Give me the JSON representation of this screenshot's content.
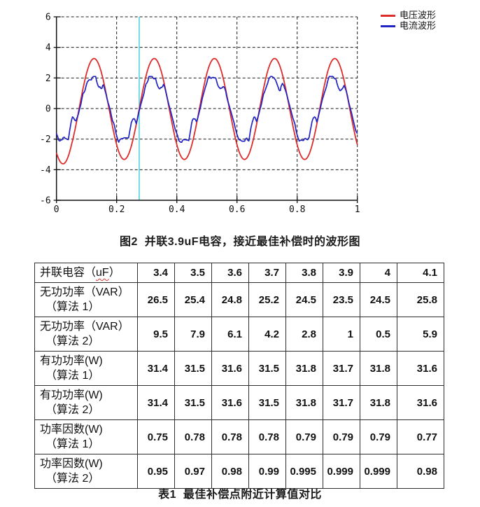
{
  "figure_caption": "图2  并联3.9uF电容，接近最佳补偿时的波形图",
  "table_caption": "表1  最佳补偿点附近计算值对比",
  "colors": {
    "background": "#ffffff",
    "voltage_line": "#dd2c2c",
    "current_line": "#2323c4",
    "cursor_line": "#45d2dc",
    "grid": "#1c1c1c",
    "axis": "#111111",
    "table_border": "#2e2e2e",
    "text": "#111111",
    "spellcheck_underline": "#e03030"
  },
  "chart_data": {
    "type": "line",
    "title": "",
    "xlabel": "",
    "ylabel": "",
    "x_range": [
      0,
      1
    ],
    "y_range": [
      -6,
      6
    ],
    "x_ticks": [
      0,
      0.2,
      0.4,
      0.6,
      0.8,
      1
    ],
    "y_ticks": [
      6,
      4,
      2,
      0,
      -2,
      -4,
      -6
    ],
    "grid": "dashed",
    "legend_position": "outside-top-right",
    "cursor_x": 0.275,
    "cursor_color": "#45d2dc",
    "waveform_period_x": 0.2,
    "n_cycles_visible": 5,
    "series": [
      {
        "name": "电压波形",
        "color": "#dd2c2c",
        "shape": "sine",
        "amplitude": 3.3,
        "dc_offset": -0.03,
        "cycles": 5,
        "rising_zero_x": 0.075,
        "peak_value": 3.25,
        "trough_value": -3.35,
        "start_value": -2.9
      },
      {
        "name": "电流波形",
        "color": "#2323c4",
        "shape": "noisy-clipped-sine",
        "amplitude": 2.5,
        "clip_level": 2.05,
        "cycles": 5,
        "rising_zero_x": 0.077,
        "peak_value": 2.05,
        "trough_value": -2.1,
        "noise_amplitude": 0.2,
        "crest_notch_depth": 0.75,
        "trough_bump_height": 1.05,
        "seed": 7
      }
    ]
  },
  "table": {
    "header": {
      "label_parts": {
        "pre": "并联电容（",
        "unit": "uF",
        "post": "）"
      },
      "values": [
        "3.4",
        "3.5",
        "3.6",
        "3.7",
        "3.8",
        "3.9",
        "4",
        "4.1"
      ]
    },
    "rows": [
      {
        "label_line1": "无功功率（VAR）",
        "label_line2": "（算法 1）",
        "values": [
          "26.5",
          "25.4",
          "24.8",
          "25.2",
          "24.5",
          "23.5",
          "24.5",
          "25.8"
        ]
      },
      {
        "label_line1": "无功功率（VAR）",
        "label_line2": "（算法 2）",
        "values": [
          "9.5",
          "7.9",
          "6.1",
          "4.2",
          "2.8",
          "1",
          "0.5",
          "5.9"
        ]
      },
      {
        "label_line1": "有功功率(W)",
        "label_line2": "（算法 1）",
        "values": [
          "31.4",
          "31.5",
          "31.6",
          "31.5",
          "31.8",
          "31.7",
          "31.8",
          "31.6"
        ]
      },
      {
        "label_line1": "有功功率(W)",
        "label_line2": "（算法 2）",
        "values": [
          "31.4",
          "31.5",
          "31.6",
          "31.5",
          "31.8",
          "31.7",
          "31.8",
          "31.6"
        ]
      },
      {
        "label_line1": "功率因数(W)",
        "label_line2": "（算法 1）",
        "values": [
          "0.75",
          "0.78",
          "0.78",
          "0.78",
          "0.79",
          "0.79",
          "0.79",
          "0.77"
        ]
      },
      {
        "label_line1": "功率因数(W)",
        "label_line2": "（算法 2）",
        "values": [
          "0.95",
          "0.97",
          "0.98",
          "0.99",
          "0.995",
          "0.999",
          "0.999",
          "0.98"
        ]
      }
    ]
  }
}
